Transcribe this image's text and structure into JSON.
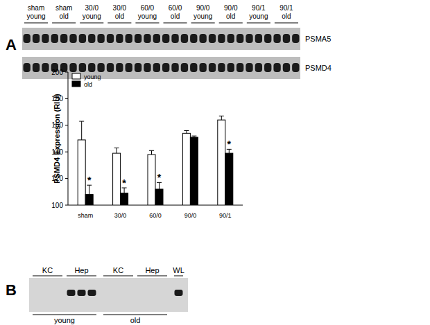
{
  "panels": [
    "A",
    "B"
  ],
  "blot_a": {
    "lanes": [
      {
        "condition": "sham",
        "age": "young"
      },
      {
        "condition": "sham",
        "age": "old"
      },
      {
        "condition": "30/0",
        "age": "young"
      },
      {
        "condition": "30/0",
        "age": "old"
      },
      {
        "condition": "60/0",
        "age": "young"
      },
      {
        "condition": "60/0",
        "age": "old"
      },
      {
        "condition": "90/0",
        "age": "young"
      },
      {
        "condition": "90/0",
        "age": "old"
      },
      {
        "condition": "90/1",
        "age": "young"
      },
      {
        "condition": "90/1",
        "age": "old"
      }
    ],
    "rows": [
      "PSMA5",
      "PSMD4"
    ]
  },
  "blot_b": {
    "groups": [
      {
        "label": "young",
        "lanes": [
          {
            "label": "KC",
            "bands": [
              false,
              false,
              false
            ]
          },
          {
            "label": "Hep",
            "bands": [
              true,
              true,
              true
            ]
          }
        ]
      },
      {
        "label": "old",
        "lanes": [
          {
            "label": "KC",
            "bands": [
              false,
              false,
              false
            ]
          },
          {
            "label": "Hep",
            "bands": [
              false,
              false,
              false
            ]
          }
        ]
      }
    ],
    "extra_lanes": [
      {
        "label": "WL",
        "bands": [
          true
        ]
      }
    ]
  },
  "chart_data": {
    "type": "bar",
    "y_label": "PSMD4 Expression (RIU)",
    "categories": [
      "sham",
      "30/0",
      "60/0",
      "90/0",
      "90/1"
    ],
    "series": [
      {
        "name": "young",
        "color": "#ffffff",
        "values": [
          149,
          139,
          138,
          154,
          164
        ],
        "errors": [
          14,
          4,
          3,
          2,
          3
        ]
      },
      {
        "name": "old",
        "color": "#000000",
        "values": [
          108,
          109,
          112,
          151,
          139
        ],
        "errors": [
          7,
          4,
          5,
          1,
          3
        ],
        "significance": [
          "*",
          "*",
          "*",
          null,
          "*"
        ]
      }
    ],
    "ylim": [
      100,
      200
    ],
    "yticks": [
      100,
      120,
      140,
      160,
      180,
      200
    ],
    "legend": "upper left",
    "grid": false
  }
}
